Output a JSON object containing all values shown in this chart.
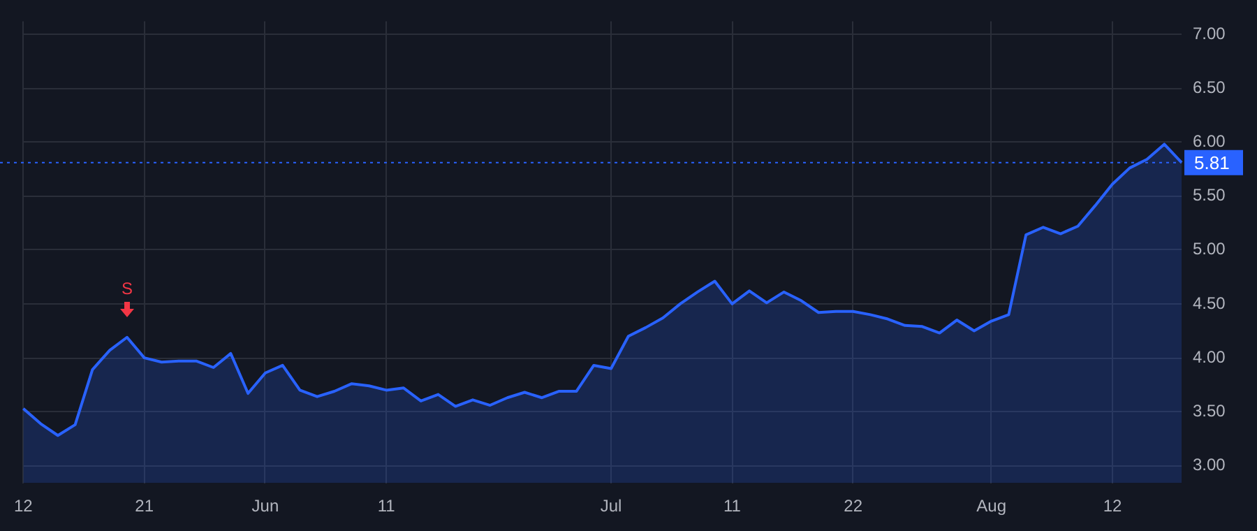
{
  "chart_data": {
    "type": "area",
    "categories": [
      "12",
      null,
      null,
      null,
      null,
      null,
      null,
      "21",
      null,
      null,
      null,
      null,
      null,
      null,
      "Jun",
      null,
      null,
      null,
      null,
      null,
      null,
      "11",
      null,
      null,
      null,
      null,
      null,
      null,
      null,
      null,
      null,
      null,
      null,
      null,
      "Jul",
      null,
      null,
      null,
      null,
      null,
      null,
      "11",
      null,
      null,
      null,
      null,
      null,
      null,
      "22",
      null,
      null,
      null,
      null,
      null,
      null,
      null,
      "Aug",
      null,
      null,
      null,
      null,
      null,
      null,
      "12",
      null,
      null,
      null,
      null
    ],
    "series": [
      {
        "color": "#2962ff",
        "values": [
          3.53,
          3.39,
          3.28,
          3.38,
          3.89,
          4.07,
          4.19,
          4.0,
          3.96,
          3.97,
          3.97,
          3.91,
          4.04,
          3.67,
          3.86,
          3.93,
          3.7,
          3.64,
          3.69,
          3.76,
          3.74,
          3.7,
          3.72,
          3.6,
          3.66,
          3.55,
          3.61,
          3.56,
          3.63,
          3.68,
          3.63,
          3.69,
          3.69,
          3.93,
          3.9,
          4.2,
          4.28,
          4.37,
          4.5,
          4.61,
          4.71,
          4.5,
          4.62,
          4.51,
          4.61,
          4.53,
          4.42,
          4.43,
          4.43,
          4.4,
          4.36,
          4.3,
          4.29,
          4.23,
          4.35,
          4.25,
          4.34,
          4.4,
          5.14,
          5.21,
          5.15,
          5.22,
          5.41,
          5.61,
          5.76,
          5.84,
          5.98,
          5.81
        ]
      }
    ],
    "ylim": [
      2.84,
      7.12
    ],
    "yticks": [
      {
        "value": 3,
        "label": "3.00"
      },
      {
        "value": 3.5,
        "label": "3.50"
      },
      {
        "value": 4,
        "label": "4.00"
      },
      {
        "value": 4.5,
        "label": "4.50"
      },
      {
        "value": 5,
        "label": "5.00"
      },
      {
        "value": 5.5,
        "label": "5.50"
      },
      {
        "value": 6,
        "label": "6.00"
      },
      {
        "value": 6.5,
        "label": "6.50"
      },
      {
        "value": 7,
        "label": "7.00"
      }
    ],
    "ref_lines": [
      {
        "axis": "y",
        "value": 5.81,
        "label": "5.81",
        "color": "#2962ff",
        "line_style": "dotted"
      }
    ],
    "annotations": [
      {
        "text": "S",
        "y": 4.19
      }
    ],
    "grid": true,
    "legend": false,
    "marker": "none",
    "line_style": "solid"
  }
}
